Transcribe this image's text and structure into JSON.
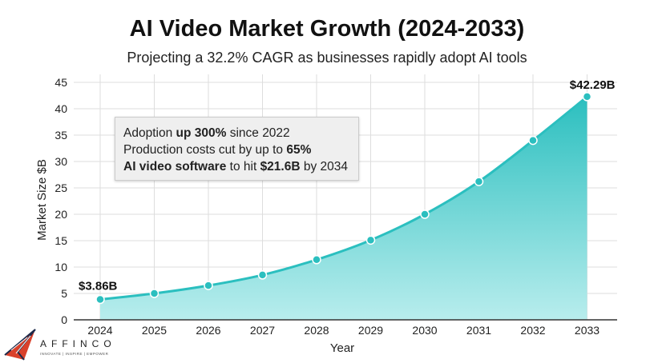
{
  "chart_data": {
    "type": "area",
    "title": "AI Video Market Growth (2024-2033)",
    "subtitle": "Projecting a 32.2% CAGR as businesses rapidly adopt AI tools",
    "xlabel": "Year",
    "ylabel": "Market Size $B",
    "ylim": [
      0,
      45
    ],
    "yticks": [
      "0",
      "5",
      "10",
      "15",
      "20",
      "25",
      "30",
      "35",
      "40",
      "45"
    ],
    "categories": [
      "2024",
      "2025",
      "2026",
      "2027",
      "2028",
      "2029",
      "2030",
      "2031",
      "2032",
      "2033"
    ],
    "values": [
      3.86,
      5.0,
      6.5,
      8.5,
      11.4,
      15.1,
      20.0,
      26.2,
      34.0,
      42.29
    ],
    "grid": true,
    "data_labels": {
      "first": "$3.86B",
      "last": "$42.29B"
    },
    "color": "#2bbfbf",
    "annotation": [
      [
        {
          "t": "Adoption ",
          "b": false
        },
        {
          "t": "up 300%",
          "b": true
        },
        {
          "t": " since 2022",
          "b": false
        }
      ],
      [
        {
          "t": "Production costs cut by up to ",
          "b": false
        },
        {
          "t": "65%",
          "b": true
        }
      ],
      [
        {
          "t": "AI video software",
          "b": true
        },
        {
          "t": " to hit ",
          "b": false
        },
        {
          "t": "$21.6B",
          "b": true
        },
        {
          "t": " by 2034",
          "b": false
        }
      ]
    ]
  },
  "logo": {
    "name": "AFFINCO",
    "tagline": "INNOVATE | INSPIRE | EMPOWER"
  }
}
